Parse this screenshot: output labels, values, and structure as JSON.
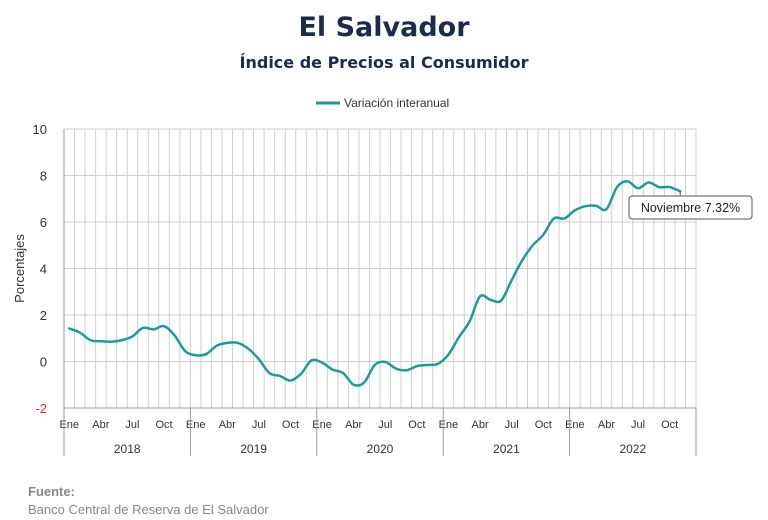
{
  "header": {
    "title": "El Salvador",
    "subtitle": "Índice de Precios al Consumidor"
  },
  "footer": {
    "label": "Fuente:",
    "text": "Banco Central de Reserva de El Salvador"
  },
  "chart_data": {
    "type": "line",
    "ylabel": "Porcentajes",
    "ylim": [
      -2,
      10
    ],
    "yticks": [
      -2,
      0,
      2,
      4,
      6,
      8,
      10
    ],
    "negative_tick_color": "#e03030",
    "grid": true,
    "legend_position": "top-center",
    "series": [
      {
        "name": "Variación interanual",
        "color": "#1b9d96",
        "x": [
          "2018-01",
          "2018-02",
          "2018-03",
          "2018-04",
          "2018-05",
          "2018-06",
          "2018-07",
          "2018-08",
          "2018-09",
          "2018-10",
          "2018-11",
          "2018-12",
          "2019-01",
          "2019-02",
          "2019-03",
          "2019-04",
          "2019-05",
          "2019-06",
          "2019-07",
          "2019-08",
          "2019-09",
          "2019-10",
          "2019-11",
          "2019-12",
          "2020-01",
          "2020-02",
          "2020-03",
          "2020-04",
          "2020-05",
          "2020-06",
          "2020-07",
          "2020-08",
          "2020-09",
          "2020-10",
          "2020-11",
          "2020-12",
          "2021-01",
          "2021-02",
          "2021-03",
          "2021-04",
          "2021-05",
          "2021-06",
          "2021-07",
          "2021-08",
          "2021-09",
          "2021-10",
          "2021-11",
          "2021-12",
          "2022-01",
          "2022-02",
          "2022-03",
          "2022-04",
          "2022-05",
          "2022-06",
          "2022-07",
          "2022-08",
          "2022-09",
          "2022-10",
          "2022-11"
        ],
        "values": [
          1.42,
          1.25,
          0.92,
          0.87,
          0.85,
          0.92,
          1.08,
          1.45,
          1.38,
          1.52,
          1.12,
          0.45,
          0.27,
          0.32,
          0.68,
          0.8,
          0.8,
          0.55,
          0.1,
          -0.5,
          -0.62,
          -0.82,
          -0.53,
          0.05,
          -0.05,
          -0.35,
          -0.5,
          -1.0,
          -0.9,
          -0.15,
          -0.02,
          -0.3,
          -0.38,
          -0.2,
          -0.15,
          -0.1,
          0.3,
          1.05,
          1.72,
          2.8,
          2.65,
          2.62,
          3.5,
          4.35,
          5.0,
          5.45,
          6.15,
          6.15,
          6.5,
          6.68,
          6.7,
          6.55,
          7.5,
          7.75,
          7.45,
          7.7,
          7.5,
          7.5,
          7.32
        ]
      }
    ],
    "month_labels": [
      "Ene",
      "Abr",
      "Jul",
      "Oct"
    ],
    "years": [
      "2018",
      "2019",
      "2020",
      "2021",
      "2022"
    ],
    "annotation": {
      "text": "Noviembre 7.32%"
    }
  }
}
